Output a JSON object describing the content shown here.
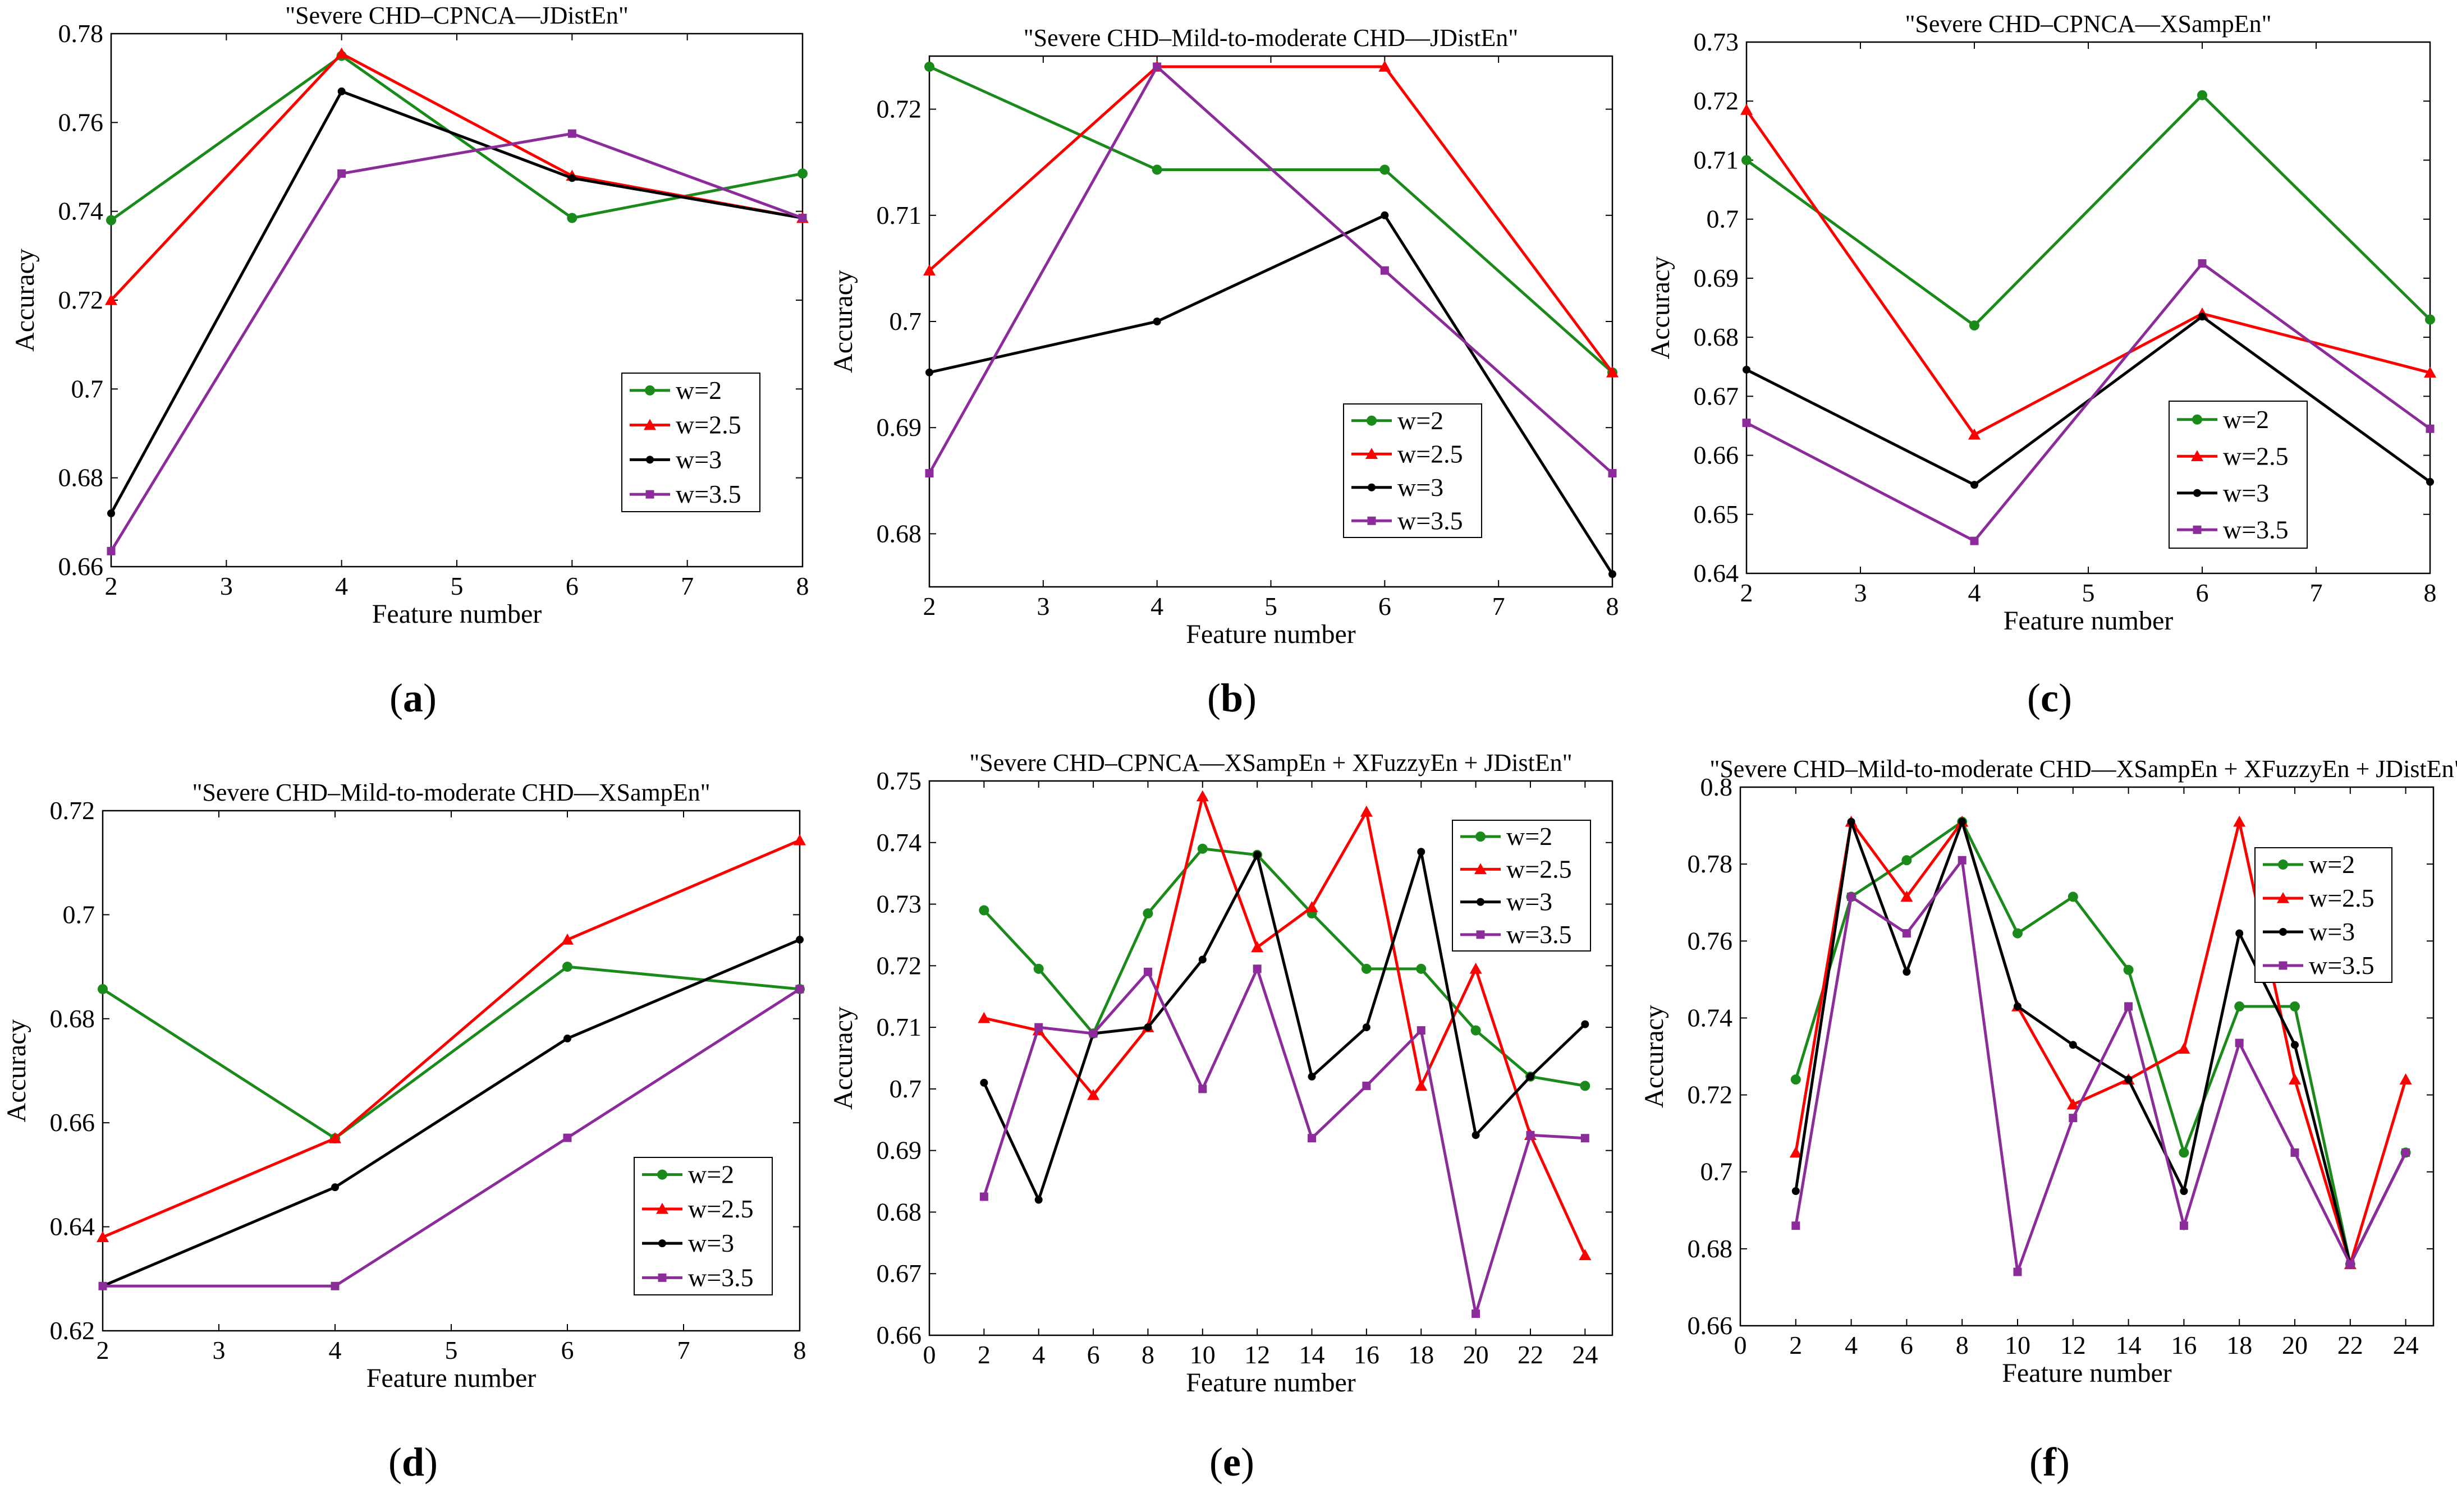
{
  "legend_labels": [
    "w=2",
    "w=2.5",
    "w=3",
    "w=3.5"
  ],
  "series_colors": [
    "#1a8a1a",
    "#ff0000",
    "#000000",
    "#8b2c9a"
  ],
  "chart_data": [
    {
      "type": "line",
      "panel_label": "(a)",
      "panel_letter": "a",
      "title": "\"Severe CHD–CPNCA—JDistEn\"",
      "xlabel": "Feature number",
      "ylabel": "Accuracy",
      "xlim": [
        2,
        8
      ],
      "ylim": [
        0.66,
        0.78
      ],
      "xticks": [
        2,
        3,
        4,
        5,
        6,
        7,
        8
      ],
      "yticks": [
        0.66,
        0.68,
        0.7,
        0.72,
        0.74,
        0.76,
        0.78
      ],
      "ytick_labels": [
        "0.66",
        "0.68",
        "0.7",
        "0.72",
        "0.74",
        "0.76",
        "0.78"
      ],
      "legend_position": "bottom-right",
      "x": [
        2,
        4,
        6,
        8
      ],
      "series": [
        {
          "name": "w=2",
          "values": [
            0.738,
            0.775,
            0.7385,
            0.7485
          ]
        },
        {
          "name": "w=2.5",
          "values": [
            0.72,
            0.7755,
            0.748,
            0.7385
          ]
        },
        {
          "name": "w=3",
          "values": [
            0.672,
            0.767,
            0.7475,
            0.7385
          ]
        },
        {
          "name": "w=3.5",
          "values": [
            0.6635,
            0.7485,
            0.7575,
            0.7385
          ]
        }
      ]
    },
    {
      "type": "line",
      "panel_label": "(b)",
      "panel_letter": "b",
      "title": "\"Severe CHD–Mild-to-moderate CHD—JDistEn\"",
      "xlabel": "Feature number",
      "ylabel": "Accuracy",
      "xlim": [
        2,
        8
      ],
      "ylim": [
        0.675,
        0.725
      ],
      "xticks": [
        2,
        3,
        4,
        5,
        6,
        7,
        8
      ],
      "yticks": [
        0.68,
        0.69,
        0.7,
        0.71,
        0.72
      ],
      "ytick_labels": [
        "0.68",
        "0.69",
        "0.7",
        "0.71",
        "0.72"
      ],
      "legend_position": "bottom-right",
      "x": [
        2,
        4,
        6,
        8
      ],
      "series": [
        {
          "name": "w=2",
          "values": [
            0.724,
            0.7143,
            0.7143,
            0.6952
          ]
        },
        {
          "name": "w=2.5",
          "values": [
            0.7048,
            0.724,
            0.724,
            0.6952
          ]
        },
        {
          "name": "w=3",
          "values": [
            0.6952,
            0.7,
            0.71,
            0.6762
          ]
        },
        {
          "name": "w=3.5",
          "values": [
            0.6857,
            0.724,
            0.7048,
            0.6857
          ]
        }
      ]
    },
    {
      "type": "line",
      "panel_label": "(c)",
      "panel_letter": "c",
      "title": "\"Severe CHD–CPNCA—XSampEn\"",
      "xlabel": "Feature number",
      "ylabel": "Accuracy",
      "xlim": [
        2,
        8
      ],
      "ylim": [
        0.64,
        0.73
      ],
      "xticks": [
        2,
        3,
        4,
        5,
        6,
        7,
        8
      ],
      "yticks": [
        0.64,
        0.65,
        0.66,
        0.67,
        0.68,
        0.69,
        0.7,
        0.71,
        0.72,
        0.73
      ],
      "ytick_labels": [
        "0.64",
        "0.65",
        "0.66",
        "0.67",
        "0.68",
        "0.69",
        "0.7",
        "0.71",
        "0.72",
        "0.73"
      ],
      "legend_position": "bottom-right",
      "x": [
        2,
        4,
        6,
        8
      ],
      "series": [
        {
          "name": "w=2",
          "values": [
            0.71,
            0.682,
            0.721,
            0.683
          ]
        },
        {
          "name": "w=2.5",
          "values": [
            0.7185,
            0.6635,
            0.684,
            0.674
          ]
        },
        {
          "name": "w=3",
          "values": [
            0.6745,
            0.655,
            0.6835,
            0.6555
          ]
        },
        {
          "name": "w=3.5",
          "values": [
            0.6655,
            0.6455,
            0.6925,
            0.6645
          ]
        }
      ]
    },
    {
      "type": "line",
      "panel_label": "(d)",
      "panel_letter": "d",
      "title": "\"Severe CHD–Mild-to-moderate CHD—XSampEn\"",
      "xlabel": "Feature number",
      "ylabel": "Accuracy",
      "xlim": [
        2,
        8
      ],
      "ylim": [
        0.62,
        0.72
      ],
      "xticks": [
        2,
        3,
        4,
        5,
        6,
        7,
        8
      ],
      "yticks": [
        0.62,
        0.64,
        0.66,
        0.68,
        0.7,
        0.72
      ],
      "ytick_labels": [
        "0.62",
        "0.64",
        "0.66",
        "0.68",
        "0.7",
        "0.72"
      ],
      "legend_position": "bottom-right",
      "x": [
        2,
        4,
        6,
        8
      ],
      "series": [
        {
          "name": "w=2",
          "values": [
            0.6857,
            0.657,
            0.69,
            0.6857
          ]
        },
        {
          "name": "w=2.5",
          "values": [
            0.638,
            0.657,
            0.6952,
            0.7143
          ]
        },
        {
          "name": "w=3",
          "values": [
            0.6286,
            0.6476,
            0.6762,
            0.6952
          ]
        },
        {
          "name": "w=3.5",
          "values": [
            0.6286,
            0.6286,
            0.6571,
            0.6857
          ]
        }
      ]
    },
    {
      "type": "line",
      "panel_label": "(e)",
      "panel_letter": "e",
      "title": "\"Severe CHD–CPNCA—XSampEn + XFuzzyEn + JDistEn\"",
      "xlabel": "Feature number",
      "ylabel": "Accuracy",
      "xlim": [
        0,
        25
      ],
      "ylim": [
        0.66,
        0.75
      ],
      "xticks": [
        0,
        2,
        4,
        6,
        8,
        10,
        12,
        14,
        16,
        18,
        20,
        22,
        24
      ],
      "yticks": [
        0.66,
        0.67,
        0.68,
        0.69,
        0.7,
        0.71,
        0.72,
        0.73,
        0.74,
        0.75
      ],
      "ytick_labels": [
        "0.66",
        "0.67",
        "0.68",
        "0.69",
        "0.7",
        "0.71",
        "0.72",
        "0.73",
        "0.74",
        "0.75"
      ],
      "legend_position": "top-right",
      "x": [
        2,
        4,
        6,
        8,
        10,
        12,
        14,
        16,
        18,
        20,
        22,
        24
      ],
      "series": [
        {
          "name": "w=2",
          "values": [
            0.729,
            0.7195,
            0.709,
            0.7285,
            0.739,
            0.738,
            0.7285,
            0.7195,
            0.7195,
            0.7095,
            0.702,
            0.7005
          ]
        },
        {
          "name": "w=2.5",
          "values": [
            0.7115,
            0.7095,
            0.699,
            0.71,
            0.7475,
            0.723,
            0.7295,
            0.745,
            0.7005,
            0.7195,
            0.6925,
            0.673
          ]
        },
        {
          "name": "w=3",
          "values": [
            0.701,
            0.682,
            0.709,
            0.71,
            0.721,
            0.738,
            0.702,
            0.71,
            0.7385,
            0.6925,
            0.702,
            0.7105
          ]
        },
        {
          "name": "w=3.5",
          "values": [
            0.6825,
            0.71,
            0.709,
            0.719,
            0.7,
            0.7195,
            0.692,
            0.7005,
            0.7095,
            0.6635,
            0.6925,
            0.692
          ]
        }
      ]
    },
    {
      "type": "line",
      "panel_label": "(f)",
      "panel_letter": "f",
      "title": "\"Severe CHD–Mild-to-moderate CHD—XSampEn + XFuzzyEn + JDistEn\"",
      "xlabel": "Feature number",
      "ylabel": "Accuracy",
      "xlim": [
        0,
        25
      ],
      "ylim": [
        0.66,
        0.8
      ],
      "xticks": [
        0,
        2,
        4,
        6,
        8,
        10,
        12,
        14,
        16,
        18,
        20,
        22,
        24
      ],
      "yticks": [
        0.66,
        0.68,
        0.7,
        0.72,
        0.74,
        0.76,
        0.78,
        0.8
      ],
      "ytick_labels": [
        "0.66",
        "0.68",
        "0.7",
        "0.72",
        "0.74",
        "0.76",
        "0.78",
        "0.8"
      ],
      "legend_position": "top-right",
      "x": [
        2,
        4,
        6,
        8,
        10,
        12,
        14,
        16,
        18,
        20,
        22,
        24
      ],
      "series": [
        {
          "name": "w=2",
          "values": [
            0.724,
            0.7715,
            0.781,
            0.791,
            0.762,
            0.7715,
            0.7525,
            0.705,
            0.743,
            0.743,
            0.676,
            0.705
          ]
        },
        {
          "name": "w=2.5",
          "values": [
            0.705,
            0.791,
            0.7715,
            0.791,
            0.743,
            0.7175,
            0.724,
            0.732,
            0.791,
            0.724,
            0.676,
            0.724
          ]
        },
        {
          "name": "w=3",
          "values": [
            0.695,
            0.791,
            0.752,
            0.791,
            0.743,
            0.733,
            0.724,
            0.695,
            0.762,
            0.733,
            0.676,
            0.705
          ]
        },
        {
          "name": "w=3.5",
          "values": [
            0.686,
            0.7715,
            0.762,
            0.781,
            0.674,
            0.714,
            0.743,
            0.686,
            0.7335,
            0.705,
            0.676,
            0.705
          ]
        }
      ]
    }
  ]
}
